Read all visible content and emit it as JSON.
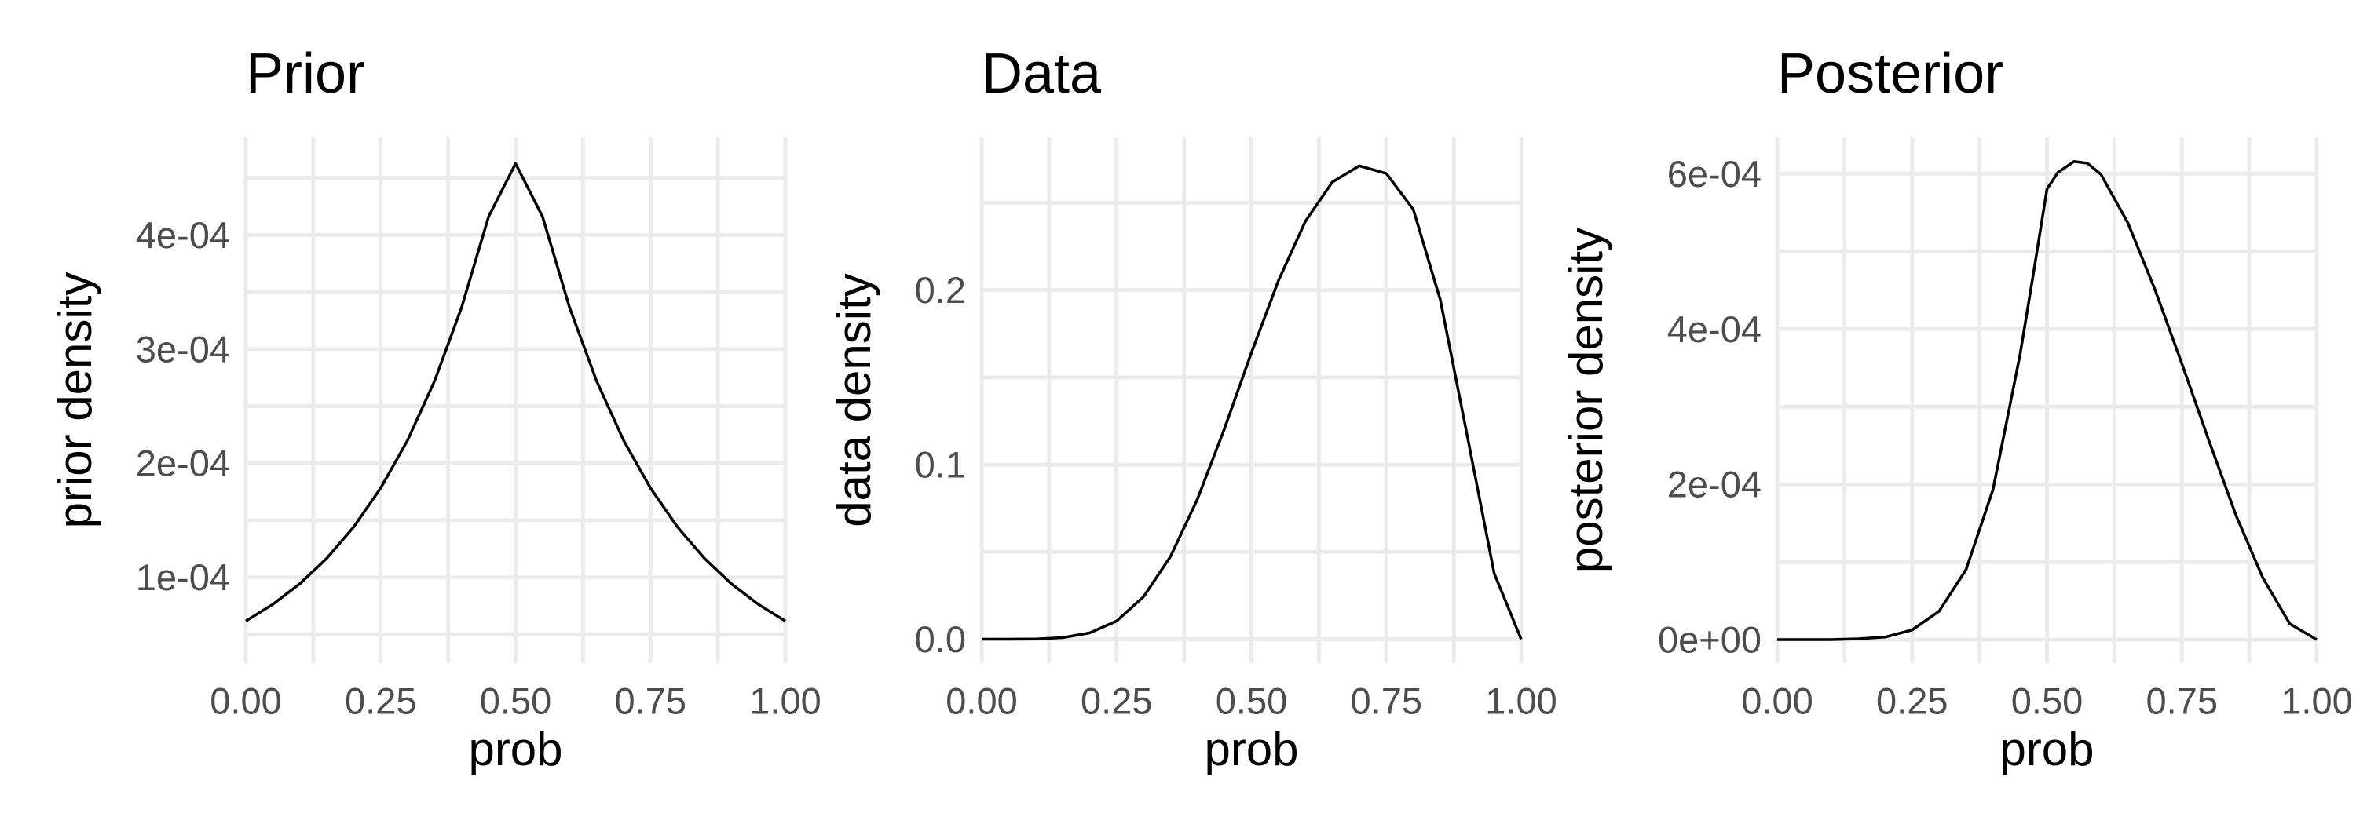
{
  "chart_data": [
    {
      "type": "line",
      "title": "Prior",
      "xlabel": "prob",
      "ylabel": "prior density",
      "xlim": [
        0,
        1
      ],
      "ylim": [
        2.48e-05,
        0.0004855
      ],
      "grid": true,
      "x_ticks": [
        0,
        0.25,
        0.5,
        0.75,
        1
      ],
      "x_tick_labels": [
        "0.00",
        "0.25",
        "0.50",
        "0.75",
        "1.00"
      ],
      "y_ticks": [
        0.0001,
        0.0002,
        0.0003,
        0.0004
      ],
      "y_tick_labels": [
        "1e-04",
        "2e-04",
        "3e-04",
        "4e-04"
      ],
      "series": [
        {
          "x": [
            0,
            0.05,
            0.1,
            0.15,
            0.2,
            0.25,
            0.3,
            0.35,
            0.4,
            0.45,
            0.5,
            0.55,
            0.6,
            0.65,
            0.7,
            0.75,
            0.8,
            0.85,
            0.9,
            0.95,
            1
          ],
          "y": [
            6.17e-05,
            7.63e-05,
            9.43e-05,
            0.0001166,
            0.0001441,
            0.0001782,
            0.0002202,
            0.0002722,
            0.0003365,
            0.000416,
            0.0004625,
            0.000416,
            0.0003365,
            0.0002722,
            0.0002202,
            0.0001782,
            0.0001441,
            0.0001166,
            9.43e-05,
            7.63e-05,
            6.17e-05
          ]
        }
      ]
    },
    {
      "type": "line",
      "title": "Data",
      "xlabel": "prob",
      "ylabel": "data density",
      "xlim": [
        0,
        1
      ],
      "ylim": [
        -0.0137,
        0.2875
      ],
      "grid": true,
      "x_ticks": [
        0,
        0.25,
        0.5,
        0.75,
        1
      ],
      "x_tick_labels": [
        "0.00",
        "0.25",
        "0.50",
        "0.75",
        "1.00"
      ],
      "y_ticks": [
        0,
        0.1,
        0.2
      ],
      "y_tick_labels": [
        "0.0",
        "0.1",
        "0.2"
      ],
      "series": [
        {
          "x": [
            0,
            0.05,
            0.1,
            0.15,
            0.2,
            0.25,
            0.3,
            0.35,
            0.4,
            0.45,
            0.5,
            0.55,
            0.6,
            0.65,
            0.7,
            0.75,
            0.8,
            0.85,
            0.9,
            0.95,
            1
          ],
          "y": [
            0,
            1e-05,
            0.0001,
            0.0009,
            0.0036,
            0.0104,
            0.0243,
            0.0474,
            0.0803,
            0.1206,
            0.1641,
            0.2054,
            0.2394,
            0.2619,
            0.2712,
            0.2668,
            0.2462,
            0.1945,
            0.1166,
            0.0377,
            0
          ]
        }
      ]
    },
    {
      "type": "line",
      "title": "Posterior",
      "xlabel": "prob",
      "ylabel": "posterior density",
      "xlim": [
        0,
        1
      ],
      "ylim": [
        -3.03e-05,
        0.0006469
      ],
      "grid": true,
      "x_ticks": [
        0,
        0.25,
        0.5,
        0.75,
        1
      ],
      "x_tick_labels": [
        "0.00",
        "0.25",
        "0.50",
        "0.75",
        "1.00"
      ],
      "y_ticks": [
        0,
        0.0002,
        0.0004,
        0.0006
      ],
      "y_tick_labels": [
        "0e+00",
        "2e-04",
        "4e-04",
        "6e-04"
      ],
      "series": [
        {
          "x": [
            0,
            0.05,
            0.1,
            0.15,
            0.2,
            0.25,
            0.3,
            0.35,
            0.4,
            0.45,
            0.475,
            0.5,
            0.52,
            0.55,
            0.575,
            0.6,
            0.65,
            0.7,
            0.75,
            0.8,
            0.85,
            0.9,
            0.95,
            1
          ],
          "y": [
            0,
            0,
            0,
            1e-06,
            3.3e-06,
            1.24e-05,
            3.65e-05,
            9.01e-05,
            0.0001933,
            0.0003666,
            0.000472,
            0.0005803,
            0.0006015,
            0.0006158,
            0.0006135,
            0.0005992,
            0.0005367,
            0.0004511,
            0.0003555,
            0.0002566,
            0.0001607,
            7.97e-05,
            2.04e-05,
            0
          ]
        }
      ]
    }
  ]
}
